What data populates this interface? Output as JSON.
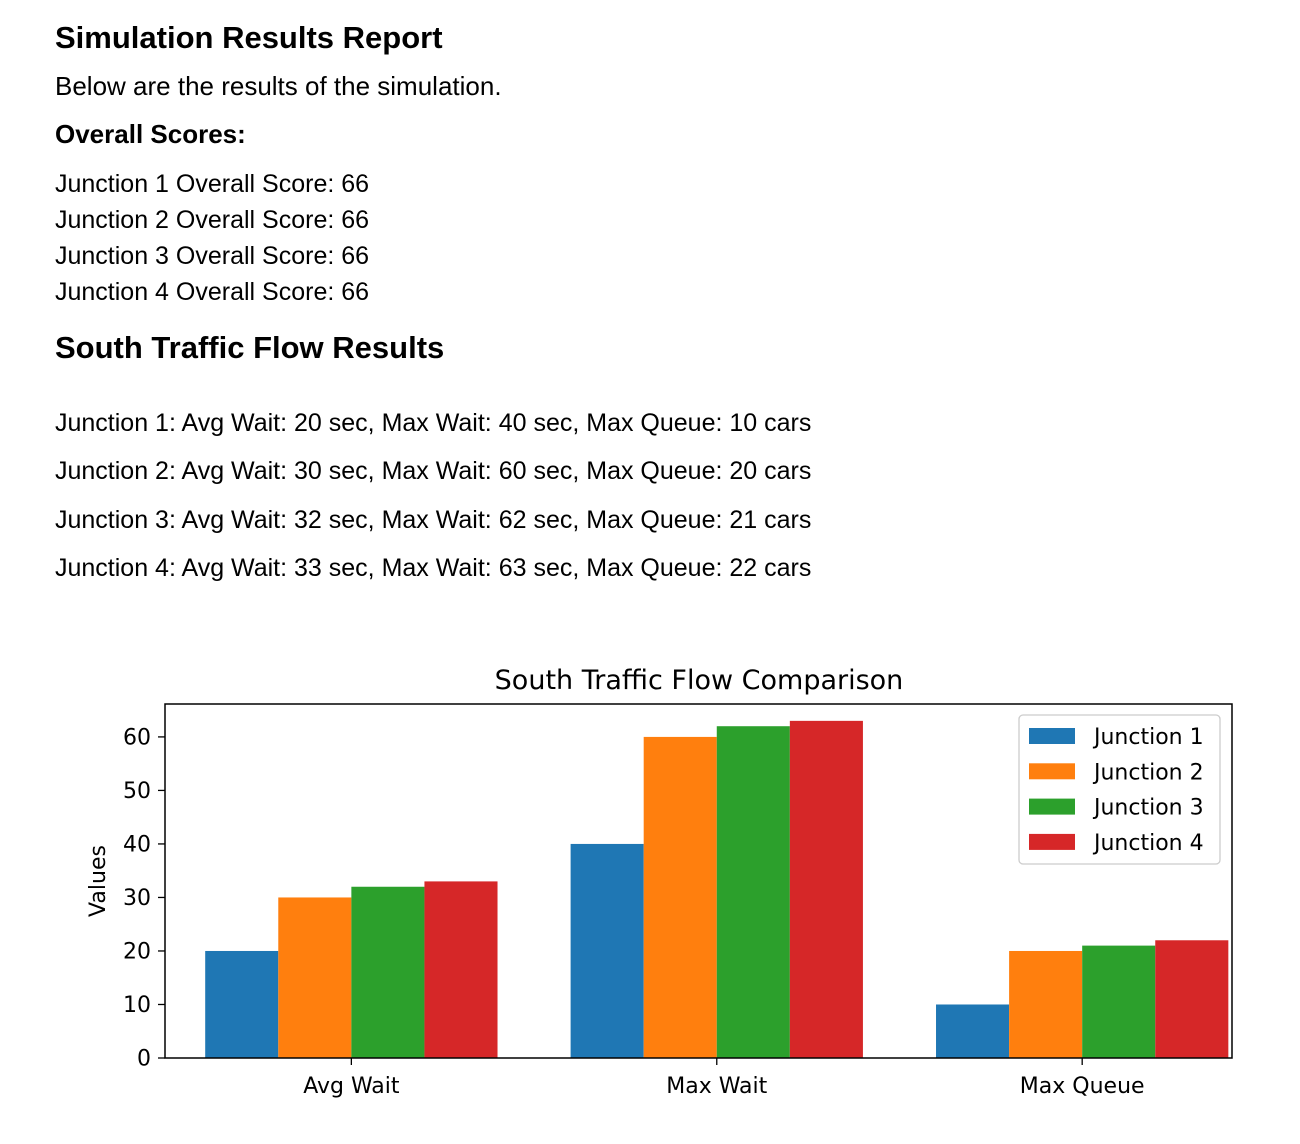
{
  "report": {
    "title": "Simulation Results Report",
    "intro": "Below are the results of the simulation.",
    "overall_heading": "Overall Scores:",
    "overall_scores": [
      "Junction 1 Overall Score: 66",
      "Junction 2 Overall Score: 66",
      "Junction 3 Overall Score: 66",
      "Junction 4 Overall Score: 66"
    ],
    "flow_heading": "South Traffic Flow Results",
    "flow_results": [
      "Junction 1: Avg Wait: 20 sec, Max Wait: 40 sec, Max Queue: 10 cars",
      "Junction 2: Avg Wait: 30 sec, Max Wait: 60 sec, Max Queue: 20 cars",
      "Junction 3: Avg Wait: 32 sec, Max Wait: 62 sec, Max Queue: 21 cars",
      "Junction 4: Avg Wait: 33 sec, Max Wait: 63 sec, Max Queue: 22 cars"
    ]
  },
  "chart_data": {
    "type": "bar",
    "title": "South Traffic Flow Comparison",
    "xlabel": "",
    "ylabel": "Values",
    "categories": [
      "Avg Wait",
      "Max Wait",
      "Max Queue"
    ],
    "series": [
      {
        "name": "Junction 1",
        "values": [
          20,
          40,
          10
        ],
        "color": "#1f77b4"
      },
      {
        "name": "Junction 2",
        "values": [
          30,
          60,
          20
        ],
        "color": "#ff7f0e"
      },
      {
        "name": "Junction 3",
        "values": [
          32,
          62,
          21
        ],
        "color": "#2ca02c"
      },
      {
        "name": "Junction 4",
        "values": [
          33,
          63,
          22
        ],
        "color": "#d62728"
      }
    ],
    "yticks": [
      0,
      10,
      20,
      30,
      40,
      50,
      60
    ],
    "ylim": [
      0,
      66.15
    ],
    "grid": false,
    "legend_position": "top-right"
  }
}
